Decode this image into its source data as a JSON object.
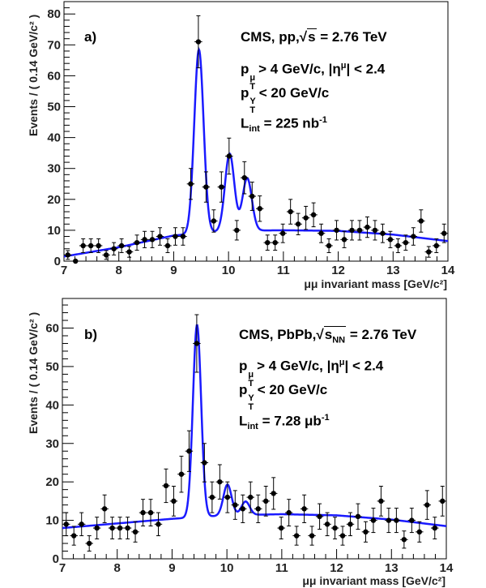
{
  "chart_data": [
    {
      "type": "scatter",
      "panel_label": "a)",
      "xlabel": "μμ invariant mass [GeV/c²]",
      "ylabel": "Events / ( 0.14 GeV/c² )",
      "xlim": [
        7,
        14
      ],
      "ylim": [
        0,
        84
      ],
      "xticks": [
        7,
        8,
        9,
        10,
        11,
        12,
        13,
        14
      ],
      "yticks": [
        0,
        10,
        20,
        30,
        40,
        50,
        60,
        70,
        80
      ],
      "bin_width": 0.14,
      "x": [
        7.07,
        7.21,
        7.35,
        7.49,
        7.63,
        7.77,
        7.91,
        8.05,
        8.19,
        8.33,
        8.47,
        8.61,
        8.75,
        8.89,
        9.03,
        9.17,
        9.31,
        9.45,
        9.59,
        9.73,
        9.87,
        10.01,
        10.15,
        10.29,
        10.43,
        10.57,
        10.71,
        10.85,
        10.99,
        11.13,
        11.27,
        11.41,
        11.55,
        11.69,
        11.83,
        11.97,
        12.11,
        12.25,
        12.39,
        12.53,
        12.67,
        12.81,
        12.95,
        13.09,
        13.23,
        13.37,
        13.51,
        13.65,
        13.79,
        13.93
      ],
      "y": [
        2,
        0,
        5,
        5,
        5,
        2,
        4,
        5,
        3,
        6,
        7,
        7,
        8,
        5,
        8,
        8,
        25,
        71,
        24,
        13,
        24,
        34,
        10,
        27,
        21,
        17,
        6,
        6,
        9,
        16,
        12,
        14,
        15,
        9,
        5,
        10,
        7,
        10,
        10,
        11,
        10,
        9,
        7,
        5,
        6,
        8,
        13,
        3,
        5,
        9
      ],
      "fit": {
        "color": "#1a1aff",
        "background": [
          [
            7,
            1.5
          ],
          [
            8,
            4.5
          ],
          [
            9,
            8.3
          ],
          [
            10,
            9.8
          ],
          [
            11,
            10
          ],
          [
            12,
            9.8
          ],
          [
            13,
            8.6
          ],
          [
            14,
            6.5
          ]
        ],
        "peaks": [
          {
            "mass": 9.46,
            "amplitude": 59.5,
            "sigma": 0.085
          },
          {
            "mass": 10.02,
            "amplitude": 25,
            "sigma": 0.085
          },
          {
            "mass": 10.34,
            "amplitude": 17,
            "sigma": 0.085
          }
        ]
      },
      "annotations": {
        "line1_prefix": "CMS, pp,",
        "line1_sqrt_symbol": "√",
        "line1_sqrt": "s",
        "line1_suffix": " = 2.76 TeV",
        "line2_p": "p",
        "line2_sup": "μ",
        "line2_sub": "T",
        "line2_rest": "> 4 GeV/c, |η",
        "line2_eta_sup": "μ",
        "line2_end": "| < 2.4",
        "line3_p": "p",
        "line3_sup": "Υ",
        "line3_sub": "T",
        "line3_rest": "< 20 GeV/c",
        "line4_L": "L",
        "line4_sub": "int",
        "line4_rest": " = 225 nb",
        "line4_sup": "-1"
      }
    },
    {
      "type": "scatter",
      "panel_label": "b)",
      "xlabel": "μμ invariant mass [GeV/c²]",
      "ylabel": "Events / ( 0.14 GeV/c² )",
      "xlim": [
        7,
        14
      ],
      "ylim": [
        0,
        67.7
      ],
      "xticks": [
        7,
        8,
        9,
        10,
        11,
        12,
        13,
        14
      ],
      "yticks": [
        0,
        10,
        20,
        30,
        40,
        50,
        60
      ],
      "bin_width": 0.14,
      "x": [
        7.07,
        7.21,
        7.35,
        7.49,
        7.63,
        7.77,
        7.91,
        8.05,
        8.19,
        8.33,
        8.47,
        8.61,
        8.75,
        8.89,
        9.03,
        9.17,
        9.31,
        9.45,
        9.59,
        9.73,
        9.87,
        10.01,
        10.15,
        10.29,
        10.43,
        10.57,
        10.71,
        10.85,
        10.99,
        11.13,
        11.27,
        11.41,
        11.55,
        11.69,
        11.83,
        11.97,
        12.11,
        12.25,
        12.39,
        12.53,
        12.67,
        12.81,
        12.95,
        13.09,
        13.23,
        13.37,
        13.51,
        13.65,
        13.79,
        13.93
      ],
      "y": [
        9,
        6,
        9,
        4,
        8,
        13,
        8,
        8,
        8,
        7,
        12,
        12,
        9,
        19,
        15,
        22,
        28,
        56,
        25,
        16,
        20,
        16,
        14,
        13,
        16,
        13,
        15,
        17,
        8,
        12,
        6,
        13,
        6,
        11,
        9,
        8,
        6,
        9,
        11,
        7,
        10,
        15,
        10,
        10,
        5,
        10,
        7,
        14,
        8,
        15
      ],
      "fit": {
        "color": "#1a1aff",
        "background": [
          [
            7,
            8
          ],
          [
            8,
            9.2
          ],
          [
            9,
            10.4
          ],
          [
            10,
            11.3
          ],
          [
            11,
            11.6
          ],
          [
            12,
            11.3
          ],
          [
            13,
            10.2
          ],
          [
            14,
            8.5
          ]
        ],
        "peaks": [
          {
            "mass": 9.455,
            "amplitude": 50,
            "sigma": 0.075
          },
          {
            "mass": 10.01,
            "amplitude": 8,
            "sigma": 0.075
          },
          {
            "mass": 10.34,
            "amplitude": 3.5,
            "sigma": 0.075
          }
        ]
      },
      "annotations": {
        "line1_prefix": "CMS, PbPb,",
        "line1_sqrt_symbol": "√",
        "line1_sqrt": "s",
        "line1_sqrt_sub": "NN",
        "line1_suffix": " = 2.76 TeV",
        "line2_p": "p",
        "line2_sup": "μ",
        "line2_sub": "T",
        "line2_rest": "> 4 GeV/c, |η",
        "line2_eta_sup": "μ",
        "line2_end": "| < 2.4",
        "line3_p": "p",
        "line3_sup": "Υ",
        "line3_sub": "T",
        "line3_rest": "< 20 GeV/c",
        "line4_L": "L",
        "line4_sub": "int",
        "line4_rest": " = 7.28 μb",
        "line4_sup": "-1"
      }
    }
  ]
}
